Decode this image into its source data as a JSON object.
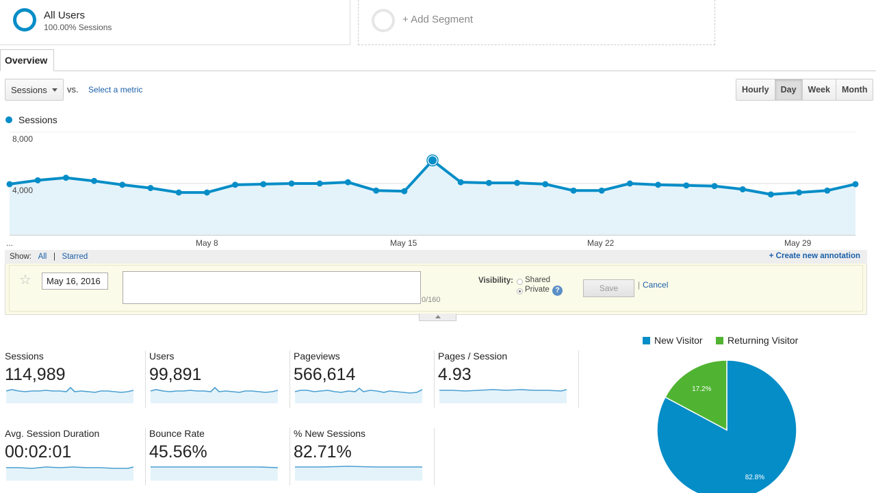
{
  "segments": {
    "active": {
      "name": "All Users",
      "sub": "100.00% Sessions"
    },
    "add_label": "+ Add Segment"
  },
  "tabs": {
    "overview": "Overview"
  },
  "metric_bar": {
    "primary": "Sessions",
    "vs": "vs.",
    "select_metric": "Select a metric",
    "periods": [
      "Hourly",
      "Day",
      "Week",
      "Month"
    ],
    "active_period": "Day"
  },
  "chart_legend": "Sessions",
  "chart_data": {
    "type": "line",
    "series": [
      {
        "name": "Sessions",
        "color": "#058dc7",
        "values": [
          3950,
          4250,
          4450,
          4200,
          3900,
          3650,
          3300,
          3300,
          3900,
          3950,
          4000,
          4000,
          4100,
          3450,
          3400,
          5800,
          4100,
          4050,
          4050,
          3950,
          3450,
          3450,
          4000,
          3900,
          3850,
          3800,
          3550,
          3150,
          3300,
          3450,
          3950
        ]
      }
    ],
    "y_ticks": [
      "8,000",
      "4,000"
    ],
    "ylim": [
      0,
      8000
    ],
    "x_ticks": [
      "...",
      "May 8",
      "May 15",
      "May 22",
      "May 29"
    ],
    "highlight_index": 15,
    "fill_color": "#e4f3fa"
  },
  "annotation": {
    "show_label": "Show:",
    "all": "All",
    "sep": "|",
    "starred": "Starred",
    "create": "+ Create new annotation",
    "date": "May 16, 2016",
    "text_value": "",
    "char_count": "0/160",
    "visibility_label": "Visibility:",
    "shared": "Shared",
    "private": "Private",
    "help": "?",
    "save": "Save",
    "pipe": "|",
    "cancel": "Cancel"
  },
  "scorecards": [
    {
      "label": "Sessions",
      "value": "114,989"
    },
    {
      "label": "Users",
      "value": "99,891"
    },
    {
      "label": "Pageviews",
      "value": "566,614"
    },
    {
      "label": "Pages / Session",
      "value": "4.93"
    },
    {
      "label": "Avg. Session Duration",
      "value": "00:02:01"
    },
    {
      "label": "Bounce Rate",
      "value": "45.56%"
    },
    {
      "label": "% New Sessions",
      "value": "82.71%"
    }
  ],
  "pie": {
    "legend": [
      {
        "label": "New Visitor",
        "color": "#058dc7"
      },
      {
        "label": "Returning Visitor",
        "color": "#50b432"
      }
    ],
    "slices": [
      {
        "label": "82.8%",
        "value": 82.8,
        "color": "#058dc7"
      },
      {
        "label": "17.2%",
        "value": 17.2,
        "color": "#50b432"
      }
    ]
  }
}
